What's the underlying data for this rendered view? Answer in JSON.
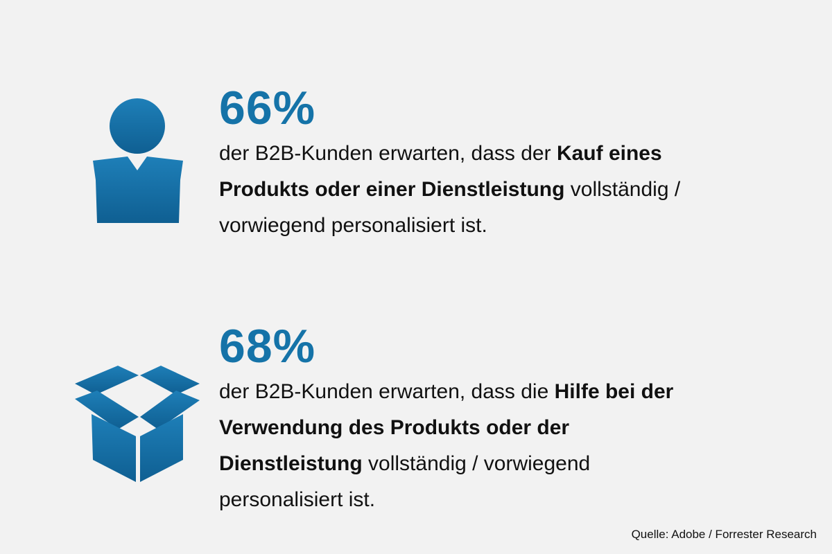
{
  "colors": {
    "background": "#f2f2f2",
    "accent": "#1573a8",
    "text": "#111111"
  },
  "stats": [
    {
      "icon": "person-icon",
      "percent": "66%",
      "text_1": "der B2B-Kunden erwarten, dass der ",
      "bold_1": "Kauf eines Produkts oder einer Dienstleistung",
      "text_2": " vollständig / vorwiegend personalisiert ist."
    },
    {
      "icon": "open-box-icon",
      "percent": "68%",
      "text_1": "der B2B-Kunden erwarten, dass die ",
      "bold_1": "Hilfe bei der Verwendung des Produkts oder der Dienstleistung",
      "text_2": " vollständig / vorwiegend personalisiert ist."
    }
  ],
  "source": "Quelle: Adobe / Forrester Research"
}
